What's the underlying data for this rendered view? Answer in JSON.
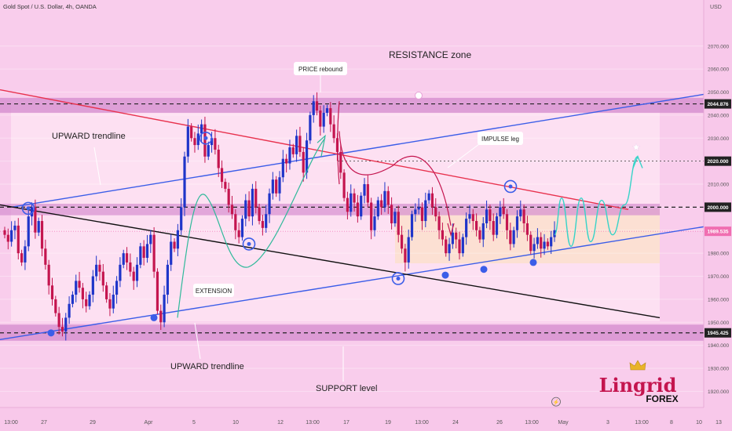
{
  "header": {
    "symbol": "Gold Spot / U.S. Dollar, 4h, OANDA",
    "currency": "USD"
  },
  "chart_data": {
    "type": "candlestick",
    "ylim": [
      1913,
      2090
    ],
    "y_ticks": [
      1920,
      1930,
      1940,
      1950,
      1960,
      1970,
      1980,
      1990,
      2000,
      2010,
      2020,
      2030,
      2040,
      2050,
      2060,
      2070
    ],
    "x_ticks": [
      "13:00",
      "27",
      "29",
      "Apr",
      "5",
      "10",
      "12",
      "13:00",
      "17",
      "19",
      "13:00",
      "24",
      "26",
      "13:00",
      "May",
      "3",
      "13:00",
      "8",
      "10",
      "13"
    ],
    "price_badges": [
      {
        "label": "2044.876",
        "value": 2044.876,
        "style": "dark"
      },
      {
        "label": "2020.000",
        "value": 2020,
        "style": "dark"
      },
      {
        "label": "2000.000",
        "value": 2000,
        "style": "dark"
      },
      {
        "label": "1989.535",
        "value": 1989.535,
        "style": "pink"
      },
      {
        "label": "1945.425",
        "value": 1945.425,
        "style": "dark"
      }
    ],
    "candles_close": [
      1988,
      1985,
      1990,
      1992,
      1980,
      1976,
      1983,
      1996,
      2000,
      1989,
      1994,
      1982,
      1975,
      1966,
      1960,
      1954,
      1948,
      1946,
      1952,
      1958,
      1962,
      1968,
      1965,
      1960,
      1957,
      1962,
      1970,
      1975,
      1972,
      1966,
      1960,
      1956,
      1962,
      1968,
      1975,
      1980,
      1976,
      1972,
      1968,
      1975,
      1983,
      1978,
      1984,
      1988,
      1972,
      1955,
      1950,
      1962,
      1975,
      1985,
      1982,
      1990,
      2000,
      2022,
      2035,
      2030,
      2027,
      2032,
      2036,
      2022,
      2027,
      2030,
      2025,
      2017,
      2011,
      2008,
      2001,
      1997,
      1990,
      1987,
      1995,
      2003,
      1996,
      2008,
      2000,
      1994,
      1991,
      1997,
      2006,
      2012,
      2006,
      2013,
      2021,
      2019,
      2026,
      2023,
      2031,
      2024,
      2015,
      2029,
      2040,
      2046,
      2042,
      2035,
      2041,
      2043,
      2036,
      2030,
      2024,
      2015,
      2004,
      1998,
      2006,
      2002,
      1996,
      2005,
      2010,
      2002,
      1990,
      1996,
      2003,
      2000,
      2007,
      2001,
      1993,
      1998,
      1988,
      1982,
      1976,
      1987,
      1997,
      1999,
      2000,
      1994,
      2003,
      2006,
      2000,
      1996,
      1990,
      1986,
      1980,
      1984,
      1989,
      1986,
      1980,
      1987,
      1995,
      1997,
      1994,
      1990,
      1986,
      1993,
      1999,
      1994,
      1988,
      1996,
      2000,
      1997,
      1990,
      1984,
      1990,
      1996,
      1999,
      1993,
      1988,
      1981,
      1984,
      1987,
      1982,
      1985,
      1983,
      1987,
      1990
    ]
  },
  "annotations": {
    "resistance": "RESISTANCE zone",
    "price_rebound": "PRICE rebound",
    "upward_top": "UPWARD trendline",
    "upward_bottom": "UPWARD trendline",
    "impulse": "IMPULSE leg",
    "extension": "EXTENSION",
    "support": "SUPPORT level"
  },
  "logo": {
    "name": "Lingrid",
    "sub": "FOREX"
  },
  "colors": {
    "bull": "#1f35c9",
    "bear": "#c4154f",
    "trend_blue": "#3b5de8",
    "trend_red": "#e8324e",
    "trend_black": "#111111",
    "projection": "#37d3c8",
    "zone": "#d68ed0",
    "badge": "#222222",
    "badge_pink": "#f06eb1"
  }
}
